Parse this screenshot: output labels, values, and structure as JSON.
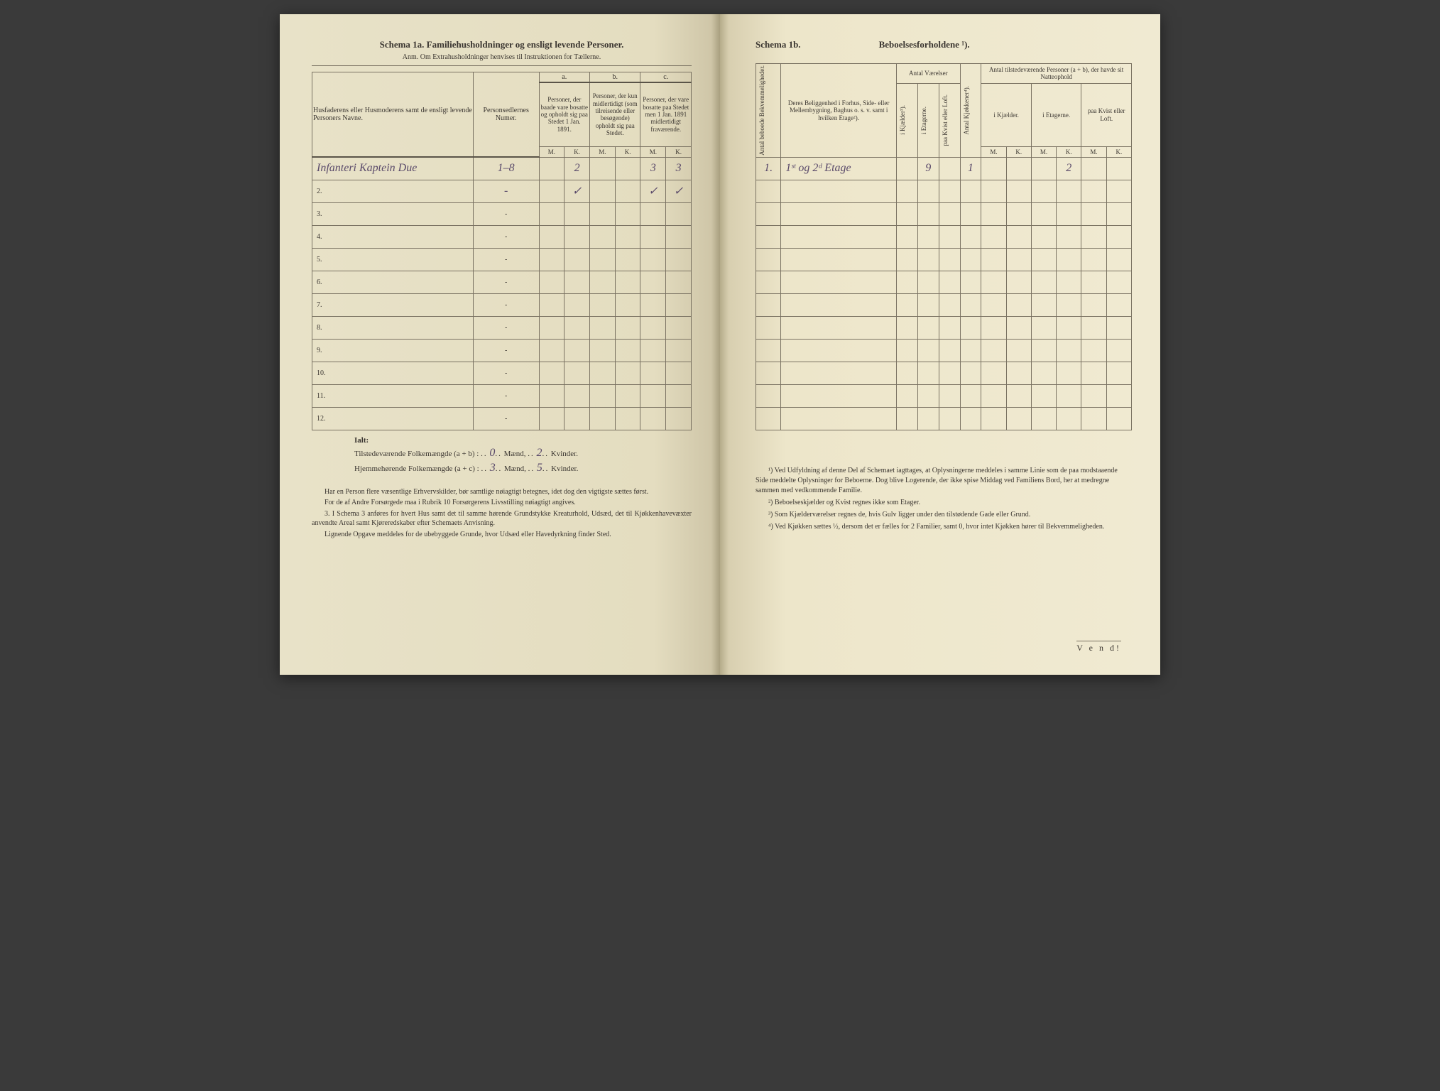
{
  "left": {
    "title": "Schema 1a.   Familiehusholdninger og ensligt levende Personer.",
    "subtitle": "Anm.  Om Extrahusholdninger henvises til Instruktionen for Tællerne.",
    "headers": {
      "name": "Husfaderens eller Husmoderens samt de ensligt levende Personers Navne.",
      "numer": "Personsedlernes Numer.",
      "a_label": "a.",
      "b_label": "b.",
      "c_label": "c.",
      "a_text": "Personer, der baade vare bosatte og opholdt sig paa Stedet 1 Jan. 1891.",
      "b_text": "Personer, der kun midlertidigt (som tilreisende eller besøgende) opholdt sig paa Stedet.",
      "c_text": "Personer, der vare bosatte paa Stedet men 1 Jan. 1891 midlertidigt fraværende.",
      "M": "M.",
      "K": "K."
    },
    "rows": [
      {
        "n": "",
        "name": "Infanteri Kaptein Due",
        "numer": "1–8",
        "aM": "",
        "aK": "2",
        "bM": "",
        "bK": "",
        "cM": "3",
        "cK": "3"
      },
      {
        "n": "2.",
        "name": "",
        "numer": "-",
        "aM": "",
        "aK": "✓",
        "bM": "",
        "bK": "",
        "cM": "✓",
        "cK": "✓"
      },
      {
        "n": "3.",
        "name": "",
        "numer": "-",
        "aM": "",
        "aK": "",
        "bM": "",
        "bK": "",
        "cM": "",
        "cK": ""
      },
      {
        "n": "4.",
        "name": "",
        "numer": "-",
        "aM": "",
        "aK": "",
        "bM": "",
        "bK": "",
        "cM": "",
        "cK": ""
      },
      {
        "n": "5.",
        "name": "",
        "numer": "-",
        "aM": "",
        "aK": "",
        "bM": "",
        "bK": "",
        "cM": "",
        "cK": ""
      },
      {
        "n": "6.",
        "name": "",
        "numer": "-",
        "aM": "",
        "aK": "",
        "bM": "",
        "bK": "",
        "cM": "",
        "cK": ""
      },
      {
        "n": "7.",
        "name": "",
        "numer": "-",
        "aM": "",
        "aK": "",
        "bM": "",
        "bK": "",
        "cM": "",
        "cK": ""
      },
      {
        "n": "8.",
        "name": "",
        "numer": "-",
        "aM": "",
        "aK": "",
        "bM": "",
        "bK": "",
        "cM": "",
        "cK": ""
      },
      {
        "n": "9.",
        "name": "",
        "numer": "-",
        "aM": "",
        "aK": "",
        "bM": "",
        "bK": "",
        "cM": "",
        "cK": ""
      },
      {
        "n": "10.",
        "name": "",
        "numer": "-",
        "aM": "",
        "aK": "",
        "bM": "",
        "bK": "",
        "cM": "",
        "cK": ""
      },
      {
        "n": "11.",
        "name": "",
        "numer": "-",
        "aM": "",
        "aK": "",
        "bM": "",
        "bK": "",
        "cM": "",
        "cK": ""
      },
      {
        "n": "12.",
        "name": "",
        "numer": "-",
        "aM": "",
        "aK": "",
        "bM": "",
        "bK": "",
        "cM": "",
        "cK": ""
      }
    ],
    "ialt": {
      "label": "Ialt:",
      "line1_a": "Tilstedeværende Folkemængde (a + b) : ",
      "line1_m": "0",
      "line1_mid": " Mænd, ",
      "line1_k": "2",
      "line1_end": " Kvinder.",
      "line2_a": "Hjemmehørende Folkemængde (a + c) : ",
      "line2_m": "3",
      "line2_mid": " Mænd, ",
      "line2_k": "5",
      "line2_end": " Kvinder."
    },
    "notes": [
      "Har en Person flere væsentlige Erhvervskilder, bør samtlige nøiagtigt betegnes, idet dog den vigtigste sættes først.",
      "For de af Andre Forsørgede maa i Rubrik 10 Forsørgerens Livsstilling nøiagtigt angives.",
      "3.  I Schema 3 anføres for hvert Hus samt det til samme hørende Grundstykke Kreaturhold, Udsæd, det til Kjøkkenhavevæxter anvendte Areal samt Kjøreredskaber efter Schemaets Anvisning.",
      "Lignende Opgave meddeles for de ubebyggede Grunde, hvor Udsæd eller Havedyrkning finder Sted."
    ]
  },
  "right": {
    "title_a": "Schema 1b.",
    "title_b": "Beboelsesforholdene ¹).",
    "headers": {
      "antal_bekv": "Antal beboede Bekvemmeligheder.",
      "beligg": "Deres Beliggenhed i Forhus, Side- eller Mellembygning, Baghus o. s. v. samt i hvilken Etage²).",
      "antal_vaer": "Antal Værelser",
      "kjaelder": "i Kjælder³).",
      "etagerne": "i Etagerne.",
      "kvist": "paa Kvist eller Loft.",
      "kjokkener": "Antal Kjøkkener⁴).",
      "tilstede": "Antal tilstedeværende Personer (a + b), der havde sit Natteophold",
      "i_kjael": "i Kjælder.",
      "i_etag": "i Etagerne.",
      "paa_kvist": "paa Kvist eller Loft.",
      "M": "M.",
      "K": "K."
    },
    "row1": {
      "n": "1.",
      "beligg": "1ˢᵗ og 2ᵈ Etage",
      "kj": "",
      "et": "9",
      "kv": "",
      "kk": "1",
      "kjM": "",
      "kjK": "",
      "etM": "",
      "etK": "2",
      "kvM": "",
      "kvK": ""
    },
    "notes": [
      "¹) Ved Udfyldning af denne Del af Schemaet iagttages, at Oplysningerne meddeles i samme Linie som de paa modstaaende Side meddelte Oplysninger for Beboerne. Dog blive Logerende, der ikke spise Middag ved Familiens Bord, her at medregne sammen med vedkommende Familie.",
      "²) Beboelseskjælder og Kvist regnes ikke som Etager.",
      "³) Som Kjælderværelser regnes de, hvis Gulv ligger under den tilstødende Gade eller Grund.",
      "⁴) Ved Kjøkken sættes ½, dersom det er fælles for 2 Familier, samt 0, hvor intet Kjøkken hører til Bekvemmeligheden."
    ],
    "vend": "V e n d!"
  },
  "colors": {
    "paper_left": "#e6dfc4",
    "paper_right": "#efe8ce",
    "ink": "#3a3530",
    "border": "#7a7262",
    "handwriting": "#5a4a6a"
  }
}
